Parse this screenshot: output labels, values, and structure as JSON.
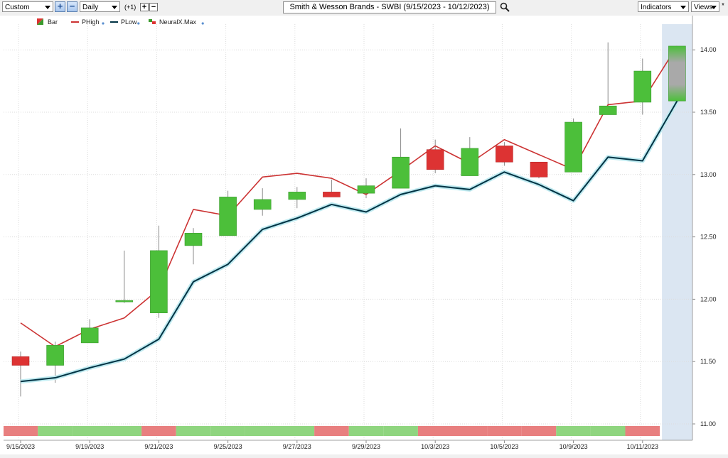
{
  "toolbar": {
    "preset": "Custom",
    "interval": "Daily",
    "offset": "(+1)",
    "title": "Smith & Wesson Brands - SWBI (9/15/2023 - 10/12/2023)",
    "indicators_label": "Indicators",
    "views_label": "Views",
    "add_symbol": "+",
    "remove_symbol": "−",
    "search_icon": "magnifier-icon",
    "star": "*"
  },
  "legend": [
    {
      "label": "Bar",
      "icon": "bar-swatch-icon"
    },
    {
      "label": "PHigh",
      "color": "#cc3333"
    },
    {
      "label": "PLow",
      "color": "#003344"
    },
    {
      "label": "NeuralX.Max",
      "icon": "neural-swatch-icon"
    }
  ],
  "colors": {
    "up": "#4cbf3a",
    "down": "#dd3333",
    "phigh": "#cc3333",
    "plow": "#003344",
    "band_green": "#8fd57f",
    "band_red": "#e87f7f",
    "forecast_shade": "#dbe6f2"
  },
  "chart_data": {
    "type": "candlestick",
    "title": "Smith & Wesson Brands - SWBI (9/15/2023 - 10/12/2023)",
    "ylim": [
      11.0,
      14.2
    ],
    "yticks": [
      "11.00",
      "11.50",
      "12.00",
      "12.50",
      "13.00",
      "13.50",
      "14.00"
    ],
    "xtick_labels": [
      "9/15/2023",
      "9/19/2023",
      "9/21/2023",
      "9/25/2023",
      "9/27/2023",
      "9/29/2023",
      "10/3/2023",
      "10/5/2023",
      "10/9/2023",
      "10/11/2023"
    ],
    "dates": [
      "9/15/2023",
      "9/18/2023",
      "9/19/2023",
      "9/20/2023",
      "9/21/2023",
      "9/22/2023",
      "9/25/2023",
      "9/26/2023",
      "9/27/2023",
      "9/28/2023",
      "9/29/2023",
      "10/2/2023",
      "10/3/2023",
      "10/4/2023",
      "10/5/2023",
      "10/6/2023",
      "10/9/2023",
      "10/10/2023",
      "10/11/2023",
      "10/12/2023"
    ],
    "ohlc": [
      {
        "o": 11.54,
        "h": 11.58,
        "l": 11.22,
        "c": 11.47
      },
      {
        "o": 11.47,
        "h": 11.66,
        "l": 11.33,
        "c": 11.63
      },
      {
        "o": 11.65,
        "h": 11.84,
        "l": 11.65,
        "c": 11.77
      },
      {
        "o": 11.99,
        "h": 12.39,
        "l": 11.97,
        "c": 11.99
      },
      {
        "o": 11.89,
        "h": 12.59,
        "l": 11.85,
        "c": 12.39
      },
      {
        "o": 12.43,
        "h": 12.57,
        "l": 12.28,
        "c": 12.53
      },
      {
        "o": 12.51,
        "h": 12.87,
        "l": 12.51,
        "c": 12.82
      },
      {
        "o": 12.72,
        "h": 12.89,
        "l": 12.67,
        "c": 12.8
      },
      {
        "o": 12.8,
        "h": 12.9,
        "l": 12.73,
        "c": 12.86
      },
      {
        "o": 12.86,
        "h": 12.96,
        "l": 12.84,
        "c": 12.82
      },
      {
        "o": 12.85,
        "h": 12.97,
        "l": 12.81,
        "c": 12.91
      },
      {
        "o": 12.89,
        "h": 13.37,
        "l": 12.89,
        "c": 13.14
      },
      {
        "o": 13.2,
        "h": 13.28,
        "l": 13.01,
        "c": 13.04
      },
      {
        "o": 12.99,
        "h": 13.3,
        "l": 12.99,
        "c": 13.21
      },
      {
        "o": 13.23,
        "h": 13.26,
        "l": 13.07,
        "c": 13.1
      },
      {
        "o": 13.1,
        "h": 13.1,
        "l": 12.97,
        "c": 12.98
      },
      {
        "o": 13.02,
        "h": 13.45,
        "l": 13.02,
        "c": 13.42
      },
      {
        "o": 13.48,
        "h": 14.06,
        "l": 13.48,
        "c": 13.55
      },
      {
        "o": 13.58,
        "h": 13.93,
        "l": 13.48,
        "c": 13.83
      },
      {
        "o": 13.59,
        "h": 14.03,
        "l": 13.59,
        "c": 14.03
      }
    ],
    "series": [
      {
        "name": "PHigh",
        "values": [
          11.81,
          11.62,
          11.76,
          11.85,
          12.08,
          12.72,
          12.67,
          12.98,
          13.01,
          12.97,
          12.84,
          13.03,
          13.23,
          13.09,
          13.28,
          13.16,
          13.04,
          13.56,
          13.59,
          14.03
        ]
      },
      {
        "name": "PLow",
        "values": [
          11.34,
          11.37,
          11.45,
          11.52,
          11.68,
          12.14,
          12.28,
          12.56,
          12.65,
          12.76,
          12.7,
          12.84,
          12.91,
          12.88,
          13.02,
          12.92,
          12.79,
          13.14,
          13.11,
          13.59
        ]
      }
    ],
    "signal_bands": [
      "red",
      "green",
      "green",
      "green",
      "red",
      "green",
      "green",
      "green",
      "green",
      "red",
      "green",
      "green",
      "red",
      "red",
      "red",
      "red",
      "green",
      "green",
      "red",
      "none"
    ],
    "forecast_index": 19,
    "grid": true,
    "legend_position": "top-left"
  }
}
